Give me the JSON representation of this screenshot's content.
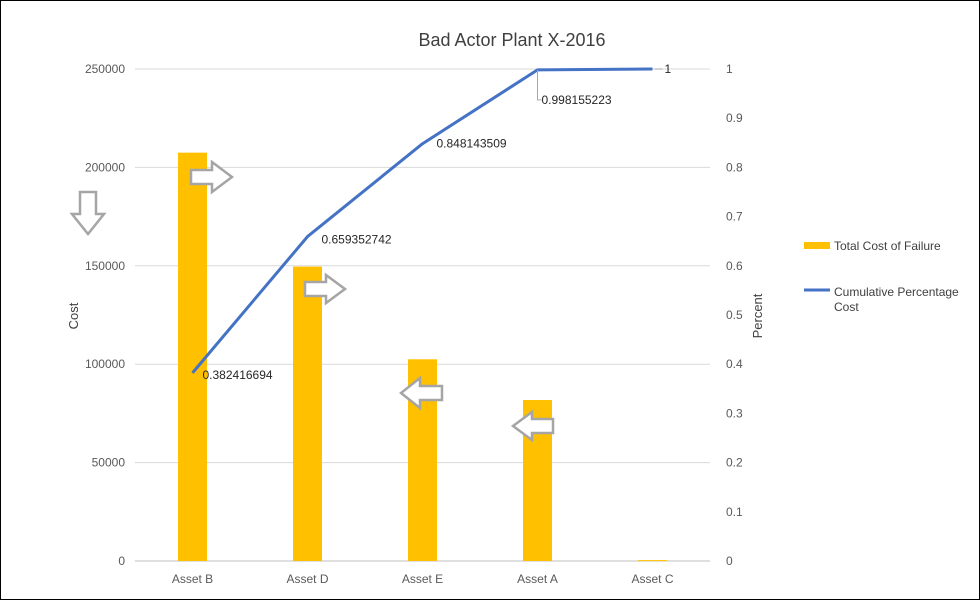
{
  "chart_data": {
    "type": "bar",
    "title": "Bad Actor Plant X-2016",
    "categories": [
      "Asset B",
      "Asset D",
      "Asset E",
      "Asset A",
      "Asset C"
    ],
    "ylabel": "Cost",
    "y2label": "Percent",
    "ylim": [
      0,
      250000
    ],
    "y_ticks": [
      "0",
      "50000",
      "100000",
      "150000",
      "200000",
      "250000"
    ],
    "y2lim": [
      0,
      1
    ],
    "y2_ticks": [
      "0",
      "0.1",
      "0.2",
      "0.3",
      "0.4",
      "0.5",
      "0.6",
      "0.7",
      "0.8",
      "0.9",
      "1"
    ],
    "grid": true,
    "legend_position": "right",
    "series": [
      {
        "name": "Total Cost of Failure",
        "kind": "bar",
        "axis": "left",
        "color": "#FFC000",
        "values": [
          207500,
          149600,
          102500,
          81800,
          460
        ]
      },
      {
        "name": "Cumulative Percentage Cost",
        "kind": "line",
        "axis": "right",
        "color": "#4472C4",
        "values": [
          0.382416694,
          0.659352742,
          0.848143509,
          0.998155223,
          1
        ],
        "labels": [
          "0.382416694",
          "0.659352742",
          "0.848143509",
          "0.998155223",
          "1"
        ]
      }
    ],
    "annotations": [
      {
        "shape": "arrow-down",
        "color": "#A5A5A5",
        "near": "Cost axis"
      },
      {
        "shape": "arrow-right",
        "color": "#A5A5A5",
        "near": "Asset B"
      },
      {
        "shape": "arrow-right",
        "color": "#A5A5A5",
        "near": "Asset D"
      },
      {
        "shape": "arrow-left",
        "color": "#A5A5A5",
        "near": "Asset E"
      },
      {
        "shape": "arrow-left",
        "color": "#A5A5A5",
        "near": "Asset A"
      }
    ]
  }
}
